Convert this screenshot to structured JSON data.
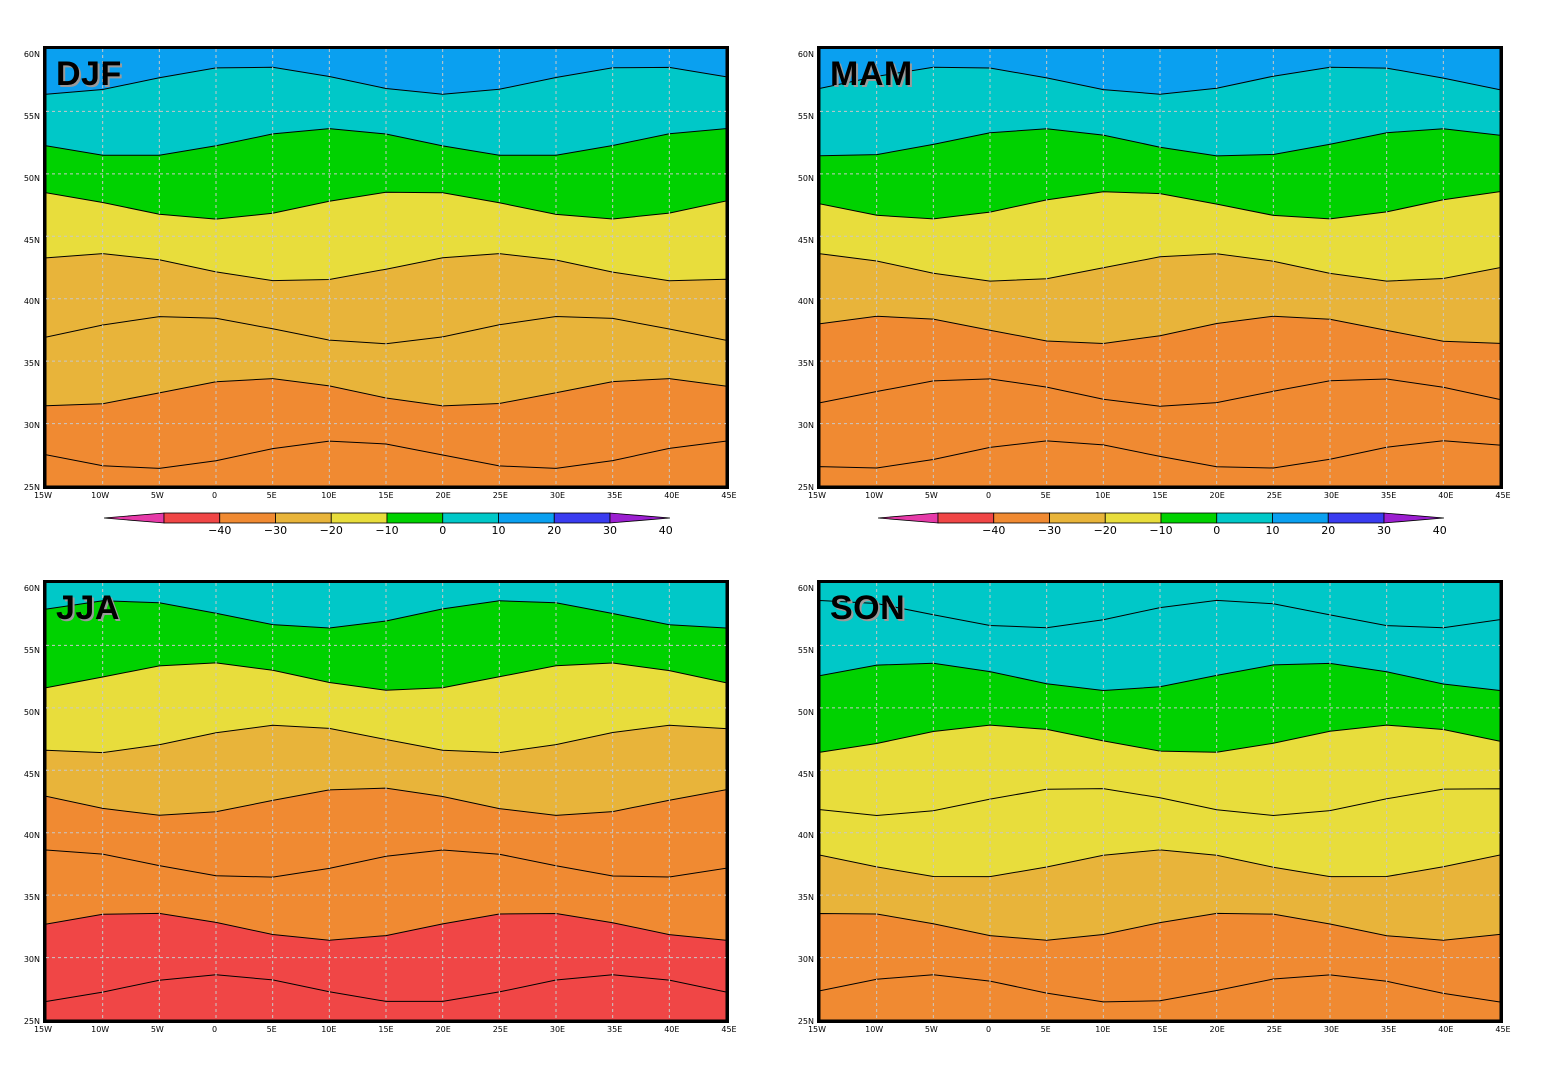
{
  "panels": [
    {
      "key": "djf",
      "label": "DJF",
      "temp": [
        -28,
        -26,
        -18,
        -12,
        -4,
        6,
        14,
        22
      ]
    },
    {
      "key": "mam",
      "label": "MAM",
      "temp": [
        -26,
        -28,
        -22,
        -14,
        -6,
        4,
        12,
        24
      ]
    },
    {
      "key": "jja",
      "label": "JJA",
      "temp": [
        -36,
        -34,
        -28,
        -22,
        -12,
        -2,
        8,
        16
      ]
    },
    {
      "key": "son",
      "label": "SON",
      "temp": [
        -28,
        -24,
        -16,
        -10,
        -6,
        2,
        10,
        18
      ]
    }
  ],
  "lat_labels": [
    "60N",
    "55N",
    "50N",
    "45N",
    "40N",
    "35N",
    "30N",
    "25N"
  ],
  "lon_labels": [
    "15W",
    "10W",
    "5W",
    "0",
    "5E",
    "10E",
    "15E",
    "20E",
    "25E",
    "30E",
    "35E",
    "40E",
    "45E"
  ],
  "colorbar": {
    "ticks": [
      "−40",
      "−30",
      "−20",
      "−10",
      "0",
      "10",
      "20",
      "30",
      "40"
    ],
    "colors": [
      "#e63aa8",
      "#f04646",
      "#f08a32",
      "#e8b43a",
      "#e8dd3c",
      "#00d200",
      "#00c8c8",
      "#0aa0f0",
      "#3a3cf0",
      "#9b1fd0"
    ]
  }
}
